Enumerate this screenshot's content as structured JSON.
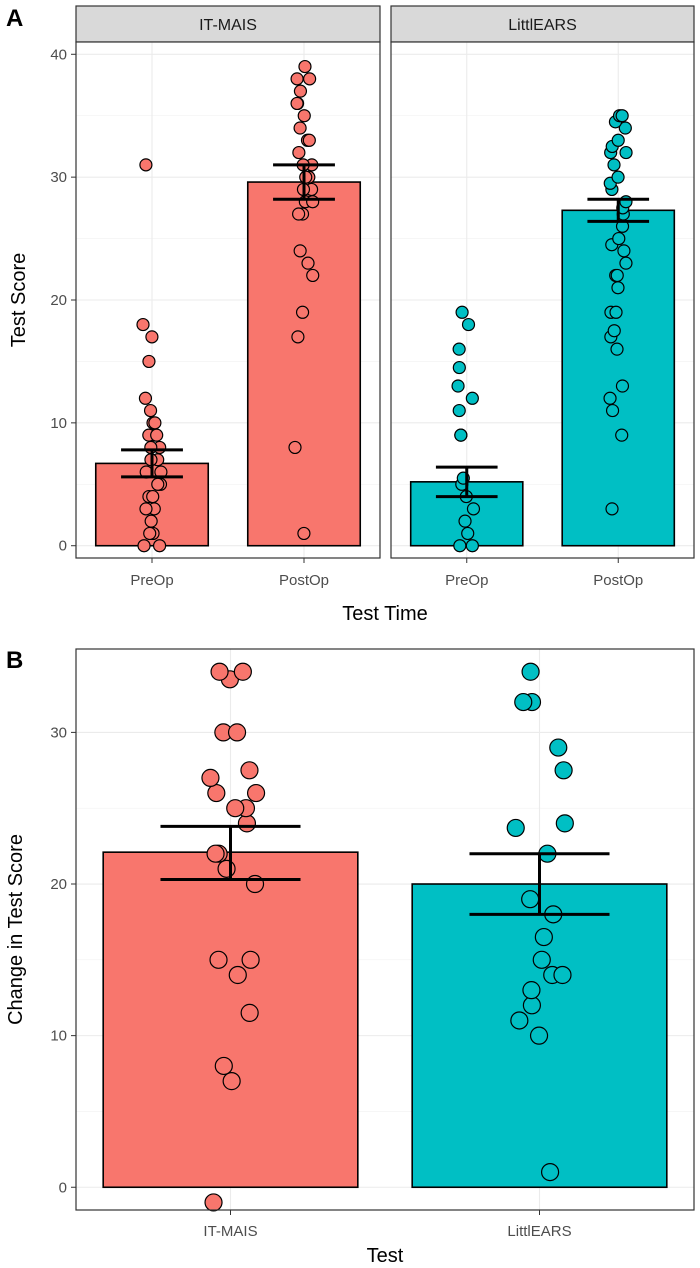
{
  "figure": {
    "panel_a_letter": "A",
    "panel_b_letter": "B"
  },
  "chart_data": [
    {
      "id": "panel_a",
      "type": "bar",
      "facets": [
        "IT-MAIS",
        "LittlEARS"
      ],
      "categories": [
        "PreOp",
        "PostOp"
      ],
      "xlabel": "Test Time",
      "ylabel": "Test Score",
      "ylim": [
        -1,
        41
      ],
      "yticks": [
        0,
        10,
        20,
        30,
        40
      ],
      "grid": true,
      "series": [
        {
          "facet": "IT-MAIS",
          "category": "PreOp",
          "mean": 6.7,
          "se_low": 5.6,
          "se_high": 7.8,
          "color": "#F8766D",
          "points": [
            0,
            0,
            1,
            1,
            2,
            3,
            3,
            4,
            4,
            5,
            5,
            6,
            6,
            7,
            7,
            8,
            8,
            9,
            9,
            9,
            10,
            10,
            11,
            12,
            15,
            17,
            18,
            31
          ]
        },
        {
          "facet": "IT-MAIS",
          "category": "PostOp",
          "mean": 29.6,
          "se_low": 28.2,
          "se_high": 31.0,
          "color": "#F8766D",
          "points": [
            1,
            8,
            17,
            19,
            22,
            23,
            24,
            27,
            27,
            28,
            28,
            29,
            29,
            30,
            30,
            31,
            31,
            32,
            33,
            33,
            34,
            35,
            36,
            36,
            37,
            38,
            38,
            39
          ]
        },
        {
          "facet": "LittlEARS",
          "category": "PreOp",
          "mean": 5.2,
          "se_low": 4.0,
          "se_high": 6.4,
          "color": "#00BFC4",
          "points": [
            0,
            0,
            1,
            2,
            3,
            4,
            5,
            5.5,
            9,
            9,
            11,
            12,
            13,
            14.5,
            16,
            18,
            19
          ]
        },
        {
          "facet": "LittlEARS",
          "category": "PostOp",
          "mean": 27.3,
          "se_low": 26.4,
          "se_high": 28.2,
          "color": "#00BFC4",
          "points": [
            3,
            9,
            11,
            12,
            13,
            16,
            17,
            17.5,
            19,
            19,
            21,
            22,
            22,
            23,
            24,
            24.5,
            25,
            26,
            27,
            27.5,
            28,
            29,
            29.5,
            30,
            31,
            32,
            32,
            32.5,
            33,
            34,
            34.5,
            35,
            35
          ]
        }
      ]
    },
    {
      "id": "panel_b",
      "type": "bar",
      "categories": [
        "IT-MAIS",
        "LittlEARS"
      ],
      "xlabel": "Test",
      "ylabel": "Change in Test Score",
      "ylim": [
        -1.5,
        35.5
      ],
      "yticks": [
        0,
        10,
        20,
        30
      ],
      "grid": true,
      "series": [
        {
          "category": "IT-MAIS",
          "mean": 22.1,
          "se_low": 20.3,
          "se_high": 23.8,
          "color": "#F8766D",
          "points": [
            -1,
            7,
            8,
            11.5,
            14,
            15,
            15,
            20,
            21,
            22,
            22,
            24,
            25,
            25,
            26,
            26,
            27,
            27.5,
            30,
            30,
            33.5,
            34,
            34
          ]
        },
        {
          "category": "LittlEARS",
          "mean": 20.0,
          "se_low": 18.0,
          "se_high": 22.0,
          "color": "#00BFC4",
          "points": [
            1,
            10,
            11,
            12,
            13,
            14,
            14,
            15,
            16.5,
            18,
            19,
            22,
            23.7,
            24,
            27.5,
            29,
            32,
            32,
            34
          ]
        }
      ]
    }
  ]
}
